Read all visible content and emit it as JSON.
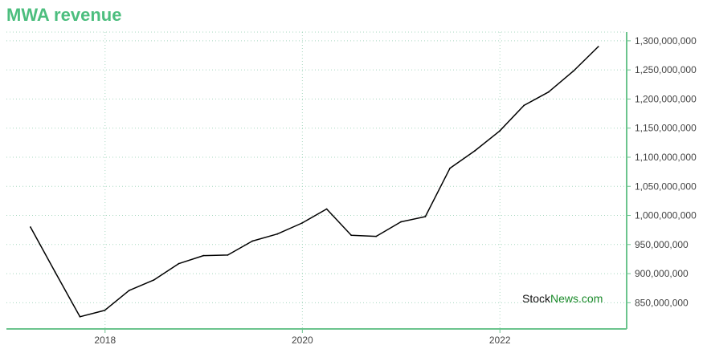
{
  "chart_data": {
    "type": "line",
    "title": "MWA revenue",
    "xlabel": "",
    "ylabel": "",
    "x_ticks": [
      "2018",
      "2020",
      "2022"
    ],
    "y_ticks": [
      "850,000,000",
      "900,000,000",
      "950,000,000",
      "1,000,000,000",
      "1,050,000,000",
      "1,100,000,000",
      "1,150,000,000",
      "1,200,000,000",
      "1,250,000,000",
      "1,300,000,000"
    ],
    "ylim": [
      805000000,
      1315000000
    ],
    "grid": true,
    "series": [
      {
        "name": "",
        "x": [
          "2017-03-31",
          "2017-06-30",
          "2017-09-30",
          "2017-12-31",
          "2018-03-31",
          "2018-06-30",
          "2018-09-30",
          "2018-12-31",
          "2019-03-31",
          "2019-06-30",
          "2019-09-30",
          "2019-12-31",
          "2020-03-31",
          "2020-06-30",
          "2020-09-30",
          "2020-12-31",
          "2021-03-31",
          "2021-06-30",
          "2021-09-30",
          "2021-12-31",
          "2022-03-31",
          "2022-06-30",
          "2022-09-30",
          "2022-12-31"
        ],
        "y": [
          980000000,
          903000000,
          826000000,
          837000000,
          871000000,
          889000000,
          917000000,
          931000000,
          932000000,
          956000000,
          968000000,
          987000000,
          1011000000,
          966000000,
          964000000,
          989000000,
          998000000,
          1081000000,
          1111000000,
          1145000000,
          1189000000,
          1212000000,
          1248000000,
          1290000000
        ]
      }
    ]
  },
  "colors": {
    "title": "#4cbe7e",
    "axis": "#6bc48d",
    "grid": "#a8d8c0",
    "line": "#000000"
  },
  "watermark": {
    "part1": "Stock",
    "part2": "News",
    "part3": ".com"
  }
}
